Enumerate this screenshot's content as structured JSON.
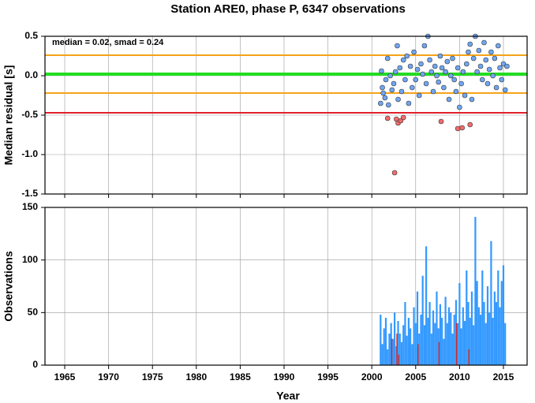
{
  "chart_data": [
    {
      "type": "scatter",
      "title": "Station ARE0, phase P, 6347 observations",
      "ylabel": "Median residual [s]",
      "annotation": "median = 0.02, smad = 0.24",
      "xlim": [
        1962.75,
        2017.7
      ],
      "xticks": [
        1965,
        1970,
        1975,
        1980,
        1985,
        1990,
        1995,
        2000,
        2005,
        2010,
        2015
      ],
      "ylim": [
        -1.5,
        0.5
      ],
      "yticks": [
        {
          "value": -1.5,
          "label": "-1.5"
        },
        {
          "value": -1,
          "label": "-1.0"
        },
        {
          "value": -0.5,
          "label": "-0.5"
        },
        {
          "value": 0,
          "label": "0.0"
        },
        {
          "value": 0.5,
          "label": "0.5"
        }
      ],
      "grid": true,
      "hlines": [
        {
          "value": 0.26,
          "color": "#f5a31a"
        },
        {
          "value": -0.22,
          "color": "#f5a31a"
        },
        {
          "value": 0.02,
          "color": "#22dd22"
        },
        {
          "value": -0.47,
          "color": "#e0202a"
        }
      ],
      "series": [
        {
          "color": "#6fa6f2",
          "x": [
            2001.0,
            2001.1,
            2001.2,
            2001.3,
            2001.5,
            2001.6,
            2001.8,
            2001.9,
            2002.1,
            2002.3,
            2002.5,
            2002.7,
            2002.9,
            2003.0,
            2003.2,
            2003.4,
            2003.6,
            2003.8,
            2004.0,
            2004.2,
            2004.4,
            2004.6,
            2004.8,
            2005.0,
            2005.2,
            2005.4,
            2005.6,
            2005.8,
            2006.0,
            2006.2,
            2006.4,
            2006.6,
            2006.8,
            2007.0,
            2007.2,
            2007.4,
            2007.6,
            2007.8,
            2008.0,
            2008.2,
            2008.4,
            2008.6,
            2008.8,
            2009.0,
            2009.2,
            2009.4,
            2009.6,
            2009.8,
            2010.0,
            2010.2,
            2010.4,
            2010.6,
            2010.8,
            2011.0,
            2011.2,
            2011.4,
            2011.6,
            2011.8,
            2012.0,
            2012.2,
            2012.4,
            2012.6,
            2012.8,
            2013.0,
            2013.2,
            2013.4,
            2013.6,
            2013.8,
            2014.0,
            2014.2,
            2014.4,
            2014.6,
            2014.8,
            2015.0,
            2015.2,
            2015.4
          ],
          "y": [
            -0.35,
            0.06,
            -0.15,
            -0.22,
            -0.28,
            -0.05,
            0.22,
            -0.37,
            0.0,
            -0.18,
            -0.1,
            0.05,
            0.38,
            -0.3,
            0.1,
            -0.2,
            0.2,
            -0.05,
            0.25,
            -0.35,
            0.12,
            -0.15,
            0.3,
            -0.05,
            0.08,
            -0.25,
            0.15,
            0.02,
            0.38,
            -0.1,
            0.5,
            0.2,
            0.05,
            -0.2,
            0.12,
            0.0,
            -0.08,
            0.25,
            0.1,
            -0.15,
            0.05,
            0.18,
            -0.3,
            0.0,
            0.22,
            -0.05,
            -0.2,
            0.1,
            -0.4,
            -0.1,
            0.05,
            -0.25,
            0.15,
            0.3,
            0.4,
            -0.3,
            0.22,
            0.5,
            0.05,
            0.32,
            0.12,
            -0.05,
            0.42,
            0.2,
            -0.1,
            0.08,
            0.3,
            0.0,
            0.22,
            -0.15,
            0.38,
            0.1,
            -0.05,
            0.15,
            -0.18,
            0.12
          ]
        },
        {
          "color": "#f26b6b",
          "x": [
            2001.8,
            2002.6,
            2002.8,
            2003.0,
            2003.3,
            2003.6,
            2007.9,
            2009.8,
            2010.3,
            2011.2
          ],
          "y": [
            -0.54,
            -1.23,
            -0.55,
            -0.6,
            -0.57,
            -0.53,
            -0.58,
            -0.67,
            -0.66,
            -0.62
          ]
        }
      ]
    },
    {
      "type": "bar",
      "ylabel": "Observations",
      "xlabel": "Year",
      "xlim": [
        1962.75,
        2017.7
      ],
      "xticks": [
        1965,
        1970,
        1975,
        1980,
        1985,
        1990,
        1995,
        2000,
        2005,
        2010,
        2015
      ],
      "ylim": [
        0,
        150
      ],
      "yticks": [
        0,
        50,
        100,
        150
      ],
      "grid": true,
      "series": [
        {
          "color": "#3399ff",
          "x": [
            2001.0,
            2001.2,
            2001.4,
            2001.6,
            2001.8,
            2002.0,
            2002.2,
            2002.4,
            2002.6,
            2002.8,
            2003.0,
            2003.2,
            2003.4,
            2003.6,
            2003.8,
            2004.0,
            2004.2,
            2004.4,
            2004.6,
            2004.8,
            2005.0,
            2005.2,
            2005.4,
            2005.6,
            2005.8,
            2006.0,
            2006.2,
            2006.4,
            2006.6,
            2006.8,
            2007.0,
            2007.2,
            2007.4,
            2007.6,
            2007.8,
            2008.0,
            2008.2,
            2008.4,
            2008.6,
            2008.8,
            2009.0,
            2009.2,
            2009.4,
            2009.6,
            2009.8,
            2010.0,
            2010.2,
            2010.4,
            2010.6,
            2010.8,
            2011.0,
            2011.2,
            2011.4,
            2011.6,
            2011.8,
            2012.0,
            2012.2,
            2012.4,
            2012.6,
            2012.8,
            2013.0,
            2013.2,
            2013.4,
            2013.6,
            2013.8,
            2014.0,
            2014.2,
            2014.4,
            2014.6,
            2014.8,
            2015.0,
            2015.2
          ],
          "values": [
            48,
            20,
            35,
            45,
            15,
            30,
            40,
            25,
            50,
            18,
            42,
            30,
            22,
            38,
            60,
            28,
            45,
            35,
            20,
            55,
            40,
            70,
            30,
            48,
            85,
            38,
            113,
            45,
            60,
            30,
            52,
            40,
            70,
            35,
            58,
            45,
            25,
            65,
            40,
            55,
            50,
            30,
            48,
            62,
            40,
            78,
            35,
            55,
            42,
            90,
            60,
            45,
            70,
            38,
            141,
            80,
            55,
            48,
            90,
            60,
            40,
            75,
            50,
            118,
            45,
            70,
            60,
            90,
            55,
            80,
            95,
            40
          ]
        },
        {
          "color": "#d62728",
          "x": [
            2002.3,
            2002.9,
            2003.1,
            2005.3,
            2007.7,
            2009.7,
            2011.1
          ],
          "values": [
            25,
            30,
            10,
            20,
            22,
            40,
            15
          ]
        }
      ]
    }
  ]
}
